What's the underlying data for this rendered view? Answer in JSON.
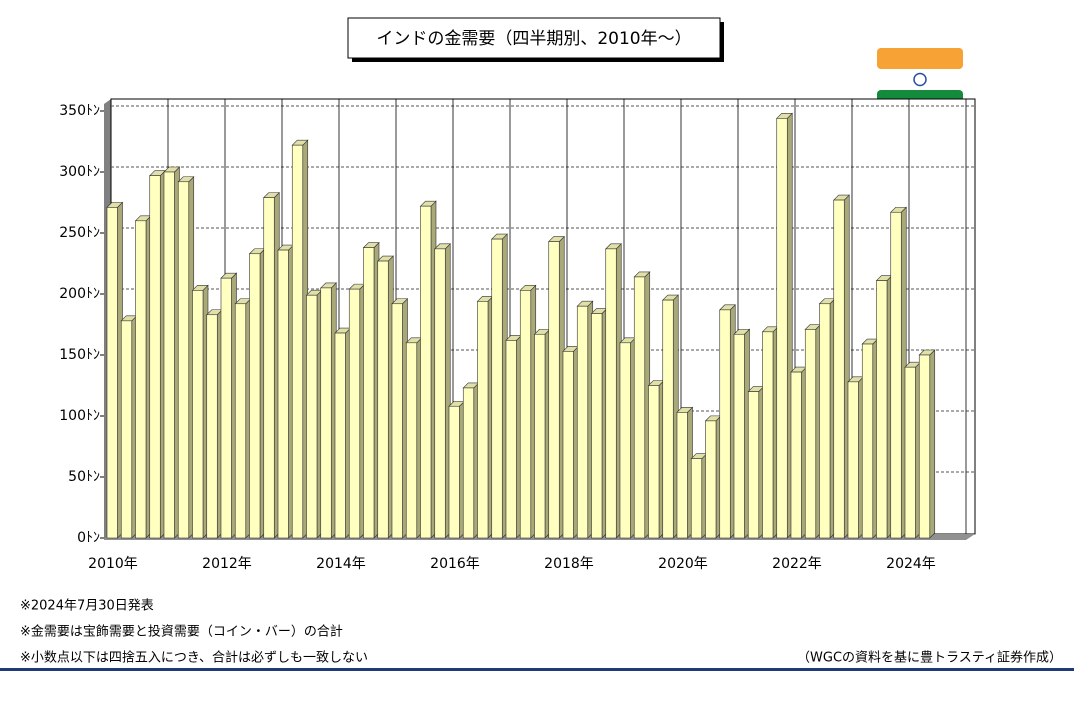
{
  "chart_data": {
    "type": "bar",
    "title": "インドの金需要（四半期別、2010年～）",
    "categories": [
      "2010年",
      null,
      null,
      null,
      null,
      null,
      null,
      null,
      "2012年",
      null,
      null,
      null,
      null,
      null,
      null,
      null,
      "2014年",
      null,
      null,
      null,
      null,
      null,
      null,
      null,
      "2016年",
      null,
      null,
      null,
      null,
      null,
      null,
      null,
      "2018年",
      null,
      null,
      null,
      null,
      null,
      null,
      null,
      "2020年",
      null,
      null,
      null,
      null,
      null,
      null,
      null,
      "2022年",
      null,
      null,
      null,
      null,
      null,
      null,
      null,
      "2024年",
      null
    ],
    "values": [
      271,
      178,
      260,
      297,
      300,
      292,
      203,
      183,
      213,
      192,
      233,
      279,
      236,
      322,
      199,
      205,
      168,
      204,
      238,
      227,
      192,
      160,
      272,
      237,
      108,
      123,
      194,
      245,
      162,
      203,
      167,
      243,
      153,
      190,
      184,
      237,
      160,
      214,
      125,
      195,
      103,
      65,
      96,
      187,
      167,
      120,
      169,
      344,
      136,
      171,
      192,
      277,
      128,
      159,
      211,
      267,
      140,
      150
    ],
    "color": "#ffffc0",
    "ylim": [
      0,
      350
    ],
    "yticks": [
      {
        "value": 0,
        "label": "0ﾄﾝ"
      },
      {
        "value": 50,
        "label": "50ﾄﾝ"
      },
      {
        "value": 100,
        "label": "100ﾄﾝ"
      },
      {
        "value": 150,
        "label": "150ﾄﾝ"
      },
      {
        "value": 200,
        "label": "200ﾄﾝ"
      },
      {
        "value": 250,
        "label": "250ﾄﾝ"
      },
      {
        "value": 300,
        "label": "300ﾄﾝ"
      },
      {
        "value": 350,
        "label": "350ﾄﾝ"
      }
    ],
    "grid": true,
    "notes": [
      "※2024年7月30日発表",
      "※金需要は宝飾需要と投資需要（コイン・バー）の合計",
      "※小数点以下は四捨五入につき、合計は必ずしも一致しない"
    ],
    "source": "（WGCの資料を基に豊トラスティ証券作成）"
  }
}
